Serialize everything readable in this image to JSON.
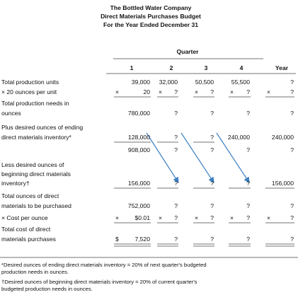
{
  "header": {
    "title": [
      "The Bottled Water Company",
      "Direct Materials Purchases Budget",
      "For the Year Ended December 31"
    ]
  },
  "table": {
    "group_header": "Quarter",
    "columns": [
      "1",
      "2",
      "3",
      "4",
      "Year"
    ],
    "rows": [
      {
        "label": [
          "Total production units"
        ],
        "cells": [
          "39,000",
          "32,000",
          "50,500",
          "55,500",
          "?"
        ]
      },
      {
        "label": [
          "× 20 ounces per unit"
        ],
        "cells": [
          {
            "op": "×",
            "text": "20"
          },
          {
            "op": "×",
            "text": "?"
          },
          {
            "op": "×",
            "text": "?"
          },
          {
            "op": "×",
            "text": "?"
          },
          {
            "op": "×",
            "text": "?"
          }
        ]
      },
      {
        "label": [
          "Total production needs in",
          "ounces"
        ],
        "cells": [
          "780,000",
          "?",
          "?",
          "?",
          "?"
        ]
      },
      {
        "label": [
          "Plus desired ounces of ending",
          "direct materials inventory*"
        ],
        "cells": [
          "128,000",
          "?",
          "?",
          "240,000",
          "240,000"
        ]
      },
      {
        "cells": [
          "908,000",
          "?",
          "?",
          "?",
          "?"
        ]
      },
      {
        "label": [
          "Less desired ounces of",
          "beginning direct materials",
          "inventory†"
        ],
        "cells": [
          "156,000",
          "?",
          "?",
          "?",
          "156,000"
        ]
      },
      {
        "label": [
          "Total ounces of direct",
          "materials to be purchased"
        ],
        "cells": [
          "752,000",
          "?",
          "?",
          "?",
          "?"
        ]
      },
      {
        "label": [
          "× Cost per ounce"
        ],
        "cells": [
          {
            "op": "×",
            "text": "$0.01"
          },
          {
            "op": "×",
            "text": "?"
          },
          {
            "op": "×",
            "text": "?"
          },
          {
            "op": "×",
            "text": "?"
          },
          {
            "op": "×",
            "text": "?"
          }
        ]
      },
      {
        "label": [
          "Total cost of direct",
          "materials purchases"
        ],
        "cells": [
          {
            "op": "$",
            "text": "7,520"
          },
          "?",
          "?",
          "?",
          "?"
        ]
      }
    ]
  },
  "footnotes": [
    [
      "*Desired ounces of ending direct materials inventory = 20% of next quarter's budgeted",
      "production needs in ounces."
    ],
    [
      "†Desired ounces of beginning direct materials inventory = 20% of current quarter's",
      "budgeted production needs in ounces."
    ]
  ]
}
